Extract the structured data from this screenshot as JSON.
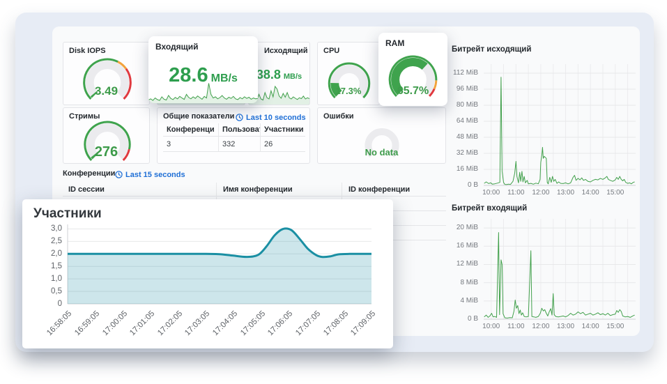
{
  "colors": {
    "green": "#3fa34d",
    "green_text": "#2e9e4e",
    "orange": "#f2a33c",
    "red": "#e0393f",
    "track_gray": "#ebebee",
    "link_blue": "#1f6fd6",
    "teal_line": "#1a8fa3",
    "teal_fill": "rgba(26,143,163,0.22)",
    "chart_green": "#41a04b",
    "chart_green_fill": "rgba(65,160,75,0.14)",
    "outer_bg": "#e7ecf5",
    "inner_bg": "#f9fafb"
  },
  "panels": {
    "disk_iops": {
      "title": "Disk IOPS"
    },
    "incoming": {
      "title": "Входящий",
      "value": "28.6",
      "unit": "MB/s"
    },
    "outgoing": {
      "title": "Исходящий",
      "value": "38.8",
      "unit": "MB/s"
    },
    "cpu": {
      "title": "CPU"
    },
    "ram": {
      "title": "RAM"
    },
    "streams": {
      "title": "Стримы"
    },
    "errors": {
      "title": "Ошибки"
    },
    "summary": {
      "title": "Общие показатели",
      "link": "Last 10 seconds",
      "columns": [
        "Конференции",
        "Пользователи",
        "Участники"
      ],
      "values": [
        "3",
        "332",
        "26"
      ]
    },
    "conferences": {
      "title": "Конференции",
      "link": "Last 15 seconds",
      "columns": [
        "ID сессии",
        "Имя конференции",
        "ID конференции"
      ]
    }
  },
  "gauges": {
    "disk_iops": {
      "value": "3.49",
      "mode": "tick",
      "frac": 0.02,
      "ring": [
        [
          "#3fa34d",
          0.6
        ],
        [
          "#f2a33c",
          0.1
        ],
        [
          "#e0393f",
          0.3
        ]
      ]
    },
    "streams": {
      "value": "276",
      "mode": "tick",
      "frac": 0.025,
      "ring": [
        [
          "#3fa34d",
          0.88
        ],
        [
          "#e0393f",
          0.12
        ]
      ]
    },
    "cpu": {
      "value": "17.3%",
      "mode": "fill",
      "frac": 0.173,
      "ring": [
        [
          "#3fa34d",
          1.0
        ]
      ]
    },
    "ram": {
      "value": "65.7%",
      "mode": "fill",
      "frac": 0.657,
      "ring": [
        [
          "#3fa34d",
          0.84
        ],
        [
          "#f2a33c",
          0.08
        ],
        [
          "#e0393f",
          0.08
        ]
      ]
    },
    "errors": {
      "value": "No data",
      "mode": "empty",
      "ring": []
    }
  },
  "chart_data": [
    {
      "id": "participants",
      "type": "area",
      "title": "Участники",
      "x_ticks": [
        "16:58:05",
        "16:59:05",
        "17:00:05",
        "17:01:05",
        "17:02:05",
        "17:03:05",
        "17:04:05",
        "17:05:05",
        "17:06:05",
        "17:07:05",
        "17:08:05",
        "17:09:05"
      ],
      "x_tick_values": [
        0,
        1,
        2,
        3,
        4,
        5,
        6,
        7,
        8,
        9,
        10,
        11
      ],
      "y_ticks": [
        "0",
        "0,5",
        "1,0",
        "1,5",
        "2,0",
        "2,5",
        "3,0"
      ],
      "y_tick_values": [
        0,
        0.5,
        1,
        1.5,
        2,
        2.5,
        3
      ],
      "xlim": [
        0,
        11
      ],
      "ylim": [
        0,
        3.18
      ],
      "rotate_x": true,
      "left_axis": true,
      "smooth": true,
      "line_color": "#1a8fa3",
      "fill_color": "rgba(26,143,163,0.22)",
      "line_width": 3,
      "points": [
        [
          0,
          2
        ],
        [
          1,
          2
        ],
        [
          2,
          2
        ],
        [
          3,
          2
        ],
        [
          4,
          2
        ],
        [
          5,
          2
        ],
        [
          5.5,
          1.99
        ],
        [
          6,
          1.93
        ],
        [
          6.5,
          1.88
        ],
        [
          6.9,
          1.96
        ],
        [
          7.2,
          2.3
        ],
        [
          7.5,
          2.75
        ],
        [
          7.8,
          3.0
        ],
        [
          8.1,
          2.95
        ],
        [
          8.4,
          2.6
        ],
        [
          8.7,
          2.2
        ],
        [
          9,
          1.95
        ],
        [
          9.2,
          1.88
        ],
        [
          9.5,
          1.9
        ],
        [
          9.8,
          1.98
        ],
        [
          10.2,
          2
        ],
        [
          11,
          2
        ]
      ]
    },
    {
      "id": "bitrate_out",
      "type": "line",
      "title": "Битрейт исходящий",
      "x_ticks": [
        "10:00",
        "11:00",
        "12:00",
        "13:00",
        "14:00",
        "15:00"
      ],
      "x_tick_values": [
        10,
        11,
        12,
        13,
        14,
        15
      ],
      "x_grid": [
        10,
        10.5,
        11,
        11.5,
        12,
        12.5,
        13,
        13.5,
        14,
        14.5,
        15,
        15.5
      ],
      "y_ticks": [
        "0 B",
        "16 MiB",
        "32 MiB",
        "48 MiB",
        "64 MiB",
        "80 MiB",
        "96 MiB",
        "112 MiB"
      ],
      "y_tick_values": [
        0,
        16,
        32,
        48,
        64,
        80,
        96,
        112
      ],
      "xlim": [
        9.7,
        15.82
      ],
      "ylim": [
        0,
        121
      ],
      "line_color": "#41a04b",
      "line_width": 1,
      "points": [
        [
          9.72,
          2
        ],
        [
          9.8,
          3.5
        ],
        [
          9.9,
          1.8
        ],
        [
          9.98,
          2.6
        ],
        [
          10.05,
          1.2
        ],
        [
          10.15,
          1.6
        ],
        [
          10.25,
          2.2
        ],
        [
          10.35,
          3
        ],
        [
          10.4,
          108
        ],
        [
          10.44,
          14
        ],
        [
          10.5,
          3
        ],
        [
          10.55,
          1
        ],
        [
          10.62,
          0.8
        ],
        [
          10.7,
          1.2
        ],
        [
          10.78,
          1
        ],
        [
          10.88,
          4
        ],
        [
          10.95,
          12
        ],
        [
          11,
          24
        ],
        [
          11.04,
          9
        ],
        [
          11.1,
          2.5
        ],
        [
          11.15,
          13
        ],
        [
          11.19,
          4
        ],
        [
          11.24,
          14
        ],
        [
          11.28,
          3.5
        ],
        [
          11.33,
          9
        ],
        [
          11.38,
          2.5
        ],
        [
          11.45,
          5
        ],
        [
          11.5,
          1.5
        ],
        [
          11.6,
          2
        ],
        [
          11.7,
          1.2
        ],
        [
          11.8,
          2.2
        ],
        [
          11.9,
          1.6
        ],
        [
          11.97,
          6
        ],
        [
          12,
          23
        ],
        [
          12.04,
          30
        ],
        [
          12.07,
          38
        ],
        [
          12.1,
          27
        ],
        [
          12.14,
          29
        ],
        [
          12.18,
          28
        ],
        [
          12.22,
          27
        ],
        [
          12.26,
          3
        ],
        [
          12.3,
          1.5
        ],
        [
          12.36,
          8
        ],
        [
          12.42,
          3
        ],
        [
          12.47,
          9
        ],
        [
          12.52,
          4
        ],
        [
          12.58,
          6
        ],
        [
          12.65,
          2
        ],
        [
          12.72,
          3.5
        ],
        [
          12.8,
          2
        ],
        [
          12.9,
          1.8
        ],
        [
          13,
          2.5
        ],
        [
          13.1,
          1.5
        ],
        [
          13.2,
          2.5
        ],
        [
          13.3,
          8
        ],
        [
          13.36,
          10
        ],
        [
          13.42,
          5
        ],
        [
          13.5,
          7
        ],
        [
          13.58,
          5.5
        ],
        [
          13.65,
          7.5
        ],
        [
          13.72,
          5
        ],
        [
          13.8,
          6
        ],
        [
          13.9,
          4
        ],
        [
          14,
          3.5
        ],
        [
          14.1,
          5
        ],
        [
          14.2,
          6
        ],
        [
          14.3,
          5.5
        ],
        [
          14.4,
          7
        ],
        [
          14.5,
          6
        ],
        [
          14.6,
          7.5
        ],
        [
          14.66,
          9
        ],
        [
          14.72,
          6
        ],
        [
          14.8,
          5
        ],
        [
          14.9,
          4
        ],
        [
          15,
          5.5
        ],
        [
          15.06,
          8
        ],
        [
          15.12,
          6
        ],
        [
          15.18,
          9
        ],
        [
          15.24,
          6
        ],
        [
          15.3,
          4.5
        ],
        [
          15.36,
          6
        ],
        [
          15.42,
          3
        ],
        [
          15.5,
          2
        ],
        [
          15.58,
          2.5
        ],
        [
          15.65,
          1.5
        ],
        [
          15.72,
          3
        ],
        [
          15.78,
          3.5
        ]
      ]
    },
    {
      "id": "bitrate_in",
      "type": "line",
      "title": "Битрейт входящий",
      "x_ticks": [
        "10:00",
        "11:00",
        "12:00",
        "13:00",
        "14:00",
        "15:00"
      ],
      "x_tick_values": [
        10,
        11,
        12,
        13,
        14,
        15
      ],
      "x_grid": [
        10,
        10.5,
        11,
        11.5,
        12,
        12.5,
        13,
        13.5,
        14,
        14.5,
        15,
        15.5
      ],
      "y_ticks": [
        "0 B",
        "4 MiB",
        "8 MiB",
        "12 MiB",
        "16 MiB",
        "20 MiB"
      ],
      "y_tick_values": [
        0,
        4,
        8,
        12,
        16,
        20
      ],
      "xlim": [
        9.7,
        15.82
      ],
      "ylim": [
        0,
        22
      ],
      "line_color": "#41a04b",
      "line_width": 1,
      "points": [
        [
          9.72,
          0.5
        ],
        [
          9.8,
          0.9
        ],
        [
          9.88,
          0.4
        ],
        [
          9.95,
          0.7
        ],
        [
          10.02,
          1.3
        ],
        [
          10.08,
          0.5
        ],
        [
          10.15,
          0.6
        ],
        [
          10.22,
          0.4
        ],
        [
          10.3,
          19
        ],
        [
          10.34,
          1
        ],
        [
          10.4,
          13
        ],
        [
          10.44,
          12
        ],
        [
          10.48,
          1.2
        ],
        [
          10.55,
          0.3
        ],
        [
          10.65,
          0.25
        ],
        [
          10.75,
          0.35
        ],
        [
          10.85,
          0.3
        ],
        [
          10.92,
          1.8
        ],
        [
          10.97,
          4.2
        ],
        [
          11.02,
          2.4
        ],
        [
          11.07,
          3
        ],
        [
          11.12,
          1.2
        ],
        [
          11.17,
          2
        ],
        [
          11.22,
          0.9
        ],
        [
          11.27,
          1.4
        ],
        [
          11.33,
          0.6
        ],
        [
          11.4,
          0.5
        ],
        [
          11.5,
          0.6
        ],
        [
          11.6,
          15
        ],
        [
          11.64,
          0.6
        ],
        [
          11.72,
          0.5
        ],
        [
          11.8,
          0.4
        ],
        [
          11.9,
          0.6
        ],
        [
          11.98,
          1.3
        ],
        [
          12.04,
          2.4
        ],
        [
          12.1,
          1.8
        ],
        [
          12.16,
          2.1
        ],
        [
          12.22,
          1.3
        ],
        [
          12.28,
          0.7
        ],
        [
          12.34,
          1.6
        ],
        [
          12.4,
          2.3
        ],
        [
          12.45,
          0.9
        ],
        [
          12.5,
          5.6
        ],
        [
          12.54,
          1
        ],
        [
          12.6,
          0.6
        ],
        [
          12.7,
          0.5
        ],
        [
          12.8,
          0.6
        ],
        [
          12.9,
          0.7
        ],
        [
          13,
          0.5
        ],
        [
          13.1,
          0.8
        ],
        [
          13.2,
          1.3
        ],
        [
          13.3,
          0.9
        ],
        [
          13.4,
          1.1
        ],
        [
          13.5,
          1.6
        ],
        [
          13.6,
          1.2
        ],
        [
          13.7,
          1.5
        ],
        [
          13.8,
          0.9
        ],
        [
          13.9,
          1.1
        ],
        [
          14,
          1.3
        ],
        [
          14.1,
          0.9
        ],
        [
          14.2,
          1.1
        ],
        [
          14.3,
          1.4
        ],
        [
          14.4,
          1
        ],
        [
          14.5,
          1.2
        ],
        [
          14.6,
          0.9
        ],
        [
          14.7,
          1.3
        ],
        [
          14.8,
          0.8
        ],
        [
          14.9,
          1
        ],
        [
          15,
          1.1
        ],
        [
          15.06,
          1.9
        ],
        [
          15.12,
          1.5
        ],
        [
          15.18,
          2.1
        ],
        [
          15.24,
          1.7
        ],
        [
          15.3,
          0.7
        ],
        [
          15.4,
          0.5
        ],
        [
          15.5,
          0.6
        ],
        [
          15.6,
          0.4
        ],
        [
          15.7,
          0.7
        ],
        [
          15.78,
          0.9
        ]
      ]
    },
    {
      "id": "spark_in",
      "type": "sparkline",
      "line_color": "#41a04b",
      "fill_color": "rgba(65,160,75,0.14)",
      "values": [
        0.12,
        0.18,
        0.1,
        0.22,
        0.14,
        0.1,
        0.28,
        0.16,
        0.12,
        0.35,
        0.2,
        0.14,
        0.25,
        0.18,
        0.3,
        0.22,
        0.15,
        0.4,
        0.25,
        0.18,
        0.28,
        0.2,
        0.32,
        0.24,
        0.16,
        0.3,
        0.22,
        0.95,
        0.4,
        0.22,
        0.28,
        0.18,
        0.24,
        0.34,
        0.22,
        0.16,
        0.26,
        0.2,
        0.3,
        0.18,
        0.14,
        0.24,
        0.18,
        0.28,
        0.2,
        0.26,
        0.16,
        0.22,
        0.18,
        0.2
      ]
    },
    {
      "id": "spark_out",
      "type": "sparkline",
      "line_color": "#41a04b",
      "fill_color": "rgba(65,160,75,0.14)",
      "values": [
        0.15,
        0.25,
        0.18,
        0.35,
        0.22,
        0.55,
        0.28,
        0.22,
        0.65,
        0.35,
        0.28,
        0.75,
        0.4,
        1.0,
        0.85,
        0.45,
        0.32,
        0.6,
        0.38,
        0.65,
        0.35,
        0.28,
        0.4,
        0.32,
        0.25,
        0.35,
        0.3,
        0.45,
        0.28,
        0.35,
        0.3
      ]
    },
    {
      "id": "spark_hidden",
      "type": "sparkline",
      "line_color": "#41a04b",
      "fill_color": "rgba(65,160,75,0.14)",
      "values": [
        0.2,
        0.35,
        0.25,
        0.45,
        0.3,
        0.55,
        0.35,
        0.28,
        0.5,
        0.3,
        0.4,
        0.3,
        0.45,
        0.35,
        0.5,
        0.3,
        0.42,
        0.3,
        0.38,
        0.3
      ]
    }
  ]
}
